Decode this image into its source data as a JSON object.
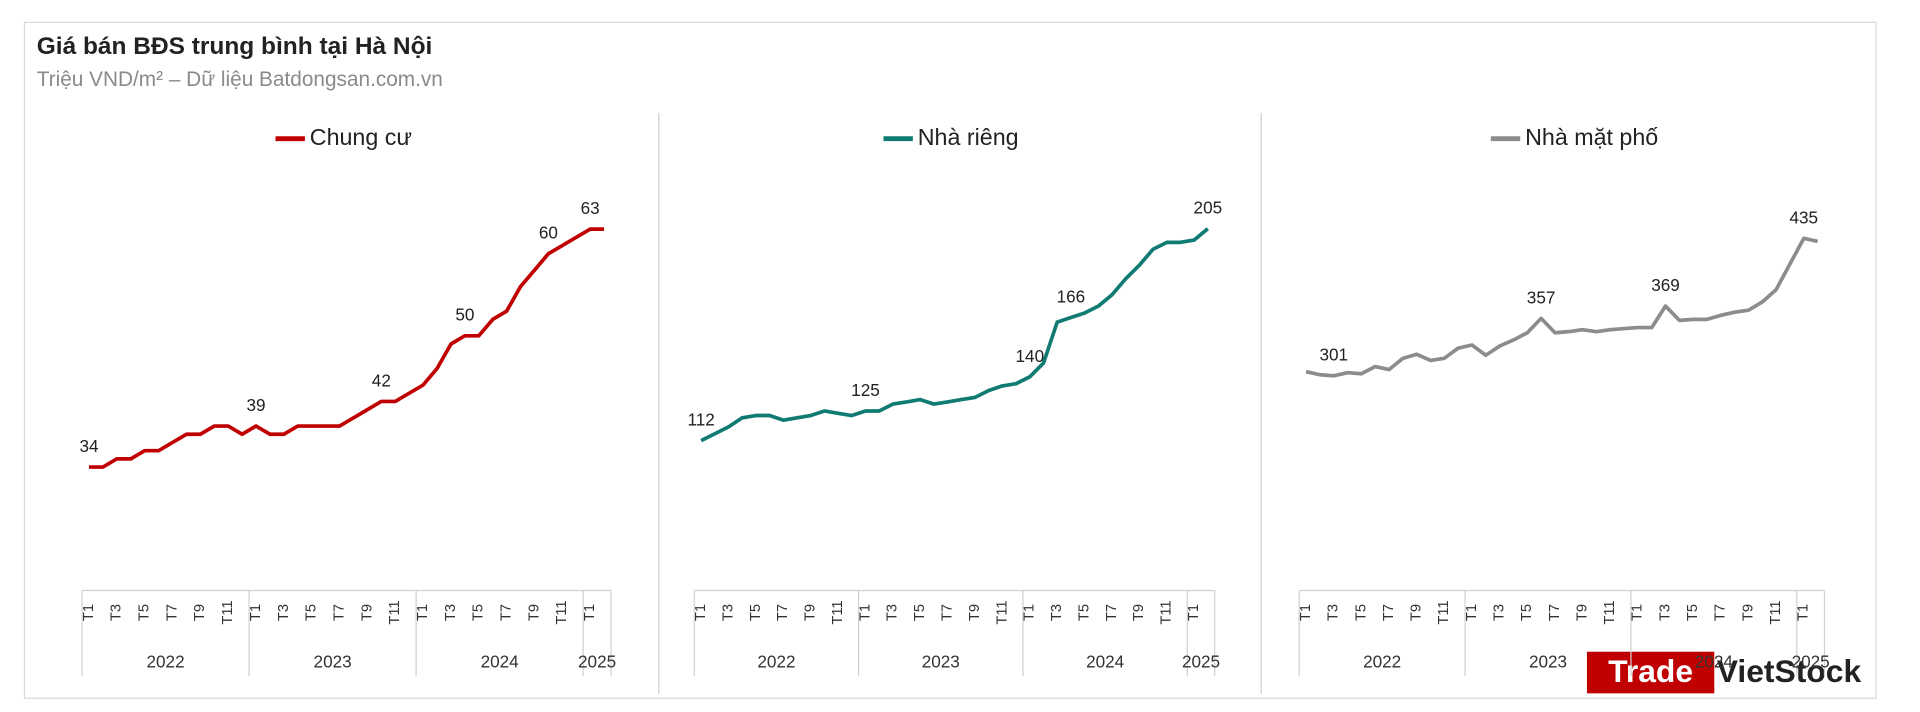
{
  "title": "Giá bán BĐS trung bình tại Hà Nội",
  "subtitle": "Triệu VND/m² – Dữ liệu Batdongsan.com.vn",
  "watermark": [
    "Trade",
    "VietStock"
  ],
  "chart_data": [
    {
      "type": "line",
      "categories": [
        "T1",
        null,
        "T3",
        null,
        "T5",
        null,
        "T7",
        null,
        "T9",
        null,
        "T11",
        null,
        "T1",
        null,
        "T3",
        null,
        "T5",
        null,
        "T7",
        null,
        "T9",
        null,
        "T11",
        null,
        "T1",
        null,
        "T3",
        null,
        "T5",
        null,
        "T7",
        null,
        "T9",
        null,
        "T11",
        null,
        "T1",
        null
      ],
      "years": [
        "2022",
        "2023",
        "2024",
        "2025"
      ],
      "ylim": [
        20,
        70
      ],
      "series": [
        {
          "name": "Chung cư",
          "color": "#c00000",
          "values": [
            34,
            34,
            35,
            35,
            36,
            36,
            37,
            38,
            38,
            39,
            39,
            38,
            39,
            38,
            38,
            39,
            39,
            39,
            39,
            40,
            41,
            42,
            42,
            43,
            44,
            46,
            49,
            50,
            50,
            52,
            53,
            56,
            58,
            60,
            61,
            62,
            63,
            63
          ],
          "value_labels": [
            "34",
            null,
            null,
            null,
            null,
            null,
            null,
            null,
            null,
            null,
            null,
            null,
            "39",
            null,
            null,
            null,
            null,
            null,
            null,
            null,
            null,
            "42",
            null,
            null,
            null,
            null,
            null,
            "50",
            null,
            null,
            null,
            null,
            null,
            "60",
            null,
            null,
            "63",
            null
          ]
        }
      ]
    },
    {
      "type": "line",
      "categories": [
        "T1",
        null,
        "T3",
        null,
        "T5",
        null,
        "T7",
        null,
        "T9",
        null,
        "T11",
        null,
        "T1",
        null,
        "T3",
        null,
        "T5",
        null,
        "T7",
        null,
        "T9",
        null,
        "T11",
        null,
        "T1",
        null,
        "T3",
        null,
        "T5",
        null,
        "T7",
        null,
        "T9",
        null,
        "T11",
        null,
        "T1",
        null
      ],
      "years": [
        "2022",
        "2023",
        "2024",
        "2025"
      ],
      "ylim": [
        50,
        230
      ],
      "series": [
        {
          "name": "Nhà riêng",
          "color": "#0f7b73",
          "values": [
            112,
            115,
            118,
            122,
            123,
            123,
            121,
            122,
            123,
            125,
            124,
            123,
            125,
            125,
            128,
            129,
            130,
            128,
            129,
            130,
            131,
            134,
            136,
            137,
            140,
            146,
            164,
            166,
            168,
            171,
            176,
            183,
            189,
            196,
            199,
            199,
            200,
            205
          ],
          "value_labels": [
            "112",
            null,
            null,
            null,
            null,
            null,
            null,
            null,
            null,
            null,
            null,
            null,
            "125",
            null,
            null,
            null,
            null,
            null,
            null,
            null,
            null,
            null,
            null,
            null,
            "140",
            null,
            null,
            "166",
            null,
            null,
            null,
            null,
            null,
            null,
            null,
            null,
            null,
            "205"
          ]
        }
      ]
    },
    {
      "type": "line",
      "categories": [
        "T1",
        null,
        "T3",
        null,
        "T5",
        null,
        "T7",
        null,
        "T9",
        null,
        "T11",
        null,
        "T1",
        null,
        "T3",
        null,
        "T5",
        null,
        "T7",
        null,
        "T9",
        null,
        "T11",
        null,
        "T1",
        null,
        "T3",
        null,
        "T5",
        null,
        "T7",
        null,
        "T9",
        null,
        "T11",
        null,
        "T1",
        null
      ],
      "years": [
        "2022",
        "2023",
        "2024",
        "2025"
      ],
      "ylim": [
        100,
        500
      ],
      "series": [
        {
          "name": "Nhà mặt phố",
          "color": "#8c8c8c",
          "values": [
            305,
            302,
            301,
            304,
            303,
            310,
            307,
            318,
            322,
            316,
            318,
            328,
            331,
            321,
            330,
            336,
            343,
            357,
            343,
            344,
            346,
            344,
            346,
            347,
            348,
            348,
            369,
            355,
            356,
            356,
            360,
            363,
            365,
            373,
            385,
            410,
            435,
            432
          ],
          "value_labels": [
            null,
            null,
            "301",
            null,
            null,
            null,
            null,
            null,
            null,
            null,
            null,
            null,
            null,
            null,
            null,
            null,
            null,
            "357",
            null,
            null,
            null,
            null,
            null,
            null,
            null,
            null,
            "369",
            null,
            null,
            null,
            null,
            null,
            null,
            null,
            null,
            null,
            "435",
            null
          ]
        }
      ]
    }
  ]
}
